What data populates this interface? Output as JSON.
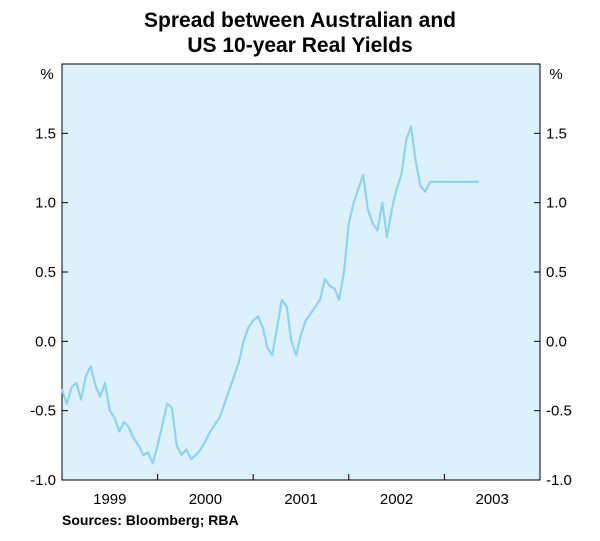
{
  "title_lines": [
    "Spread between Australian and",
    "US 10-year Real Yields"
  ],
  "source": "Sources: Bloomberg; RBA",
  "colors": {
    "line": "#8ed3ef",
    "plot_bg": "#dcf1fb",
    "axis": "#000000"
  },
  "chart_data": {
    "type": "line",
    "title": "Spread between Australian and US 10-year Real Yields",
    "y_unit_label": "%",
    "ylim": [
      -1.0,
      2.0
    ],
    "y_ticks": [
      -1.0,
      -0.5,
      0.0,
      0.5,
      1.0,
      1.5
    ],
    "y_tick_labels": [
      "-1.0",
      "-0.5",
      "0.0",
      "0.5",
      "1.0",
      "1.5"
    ],
    "xlim": [
      1998.5,
      2003.5
    ],
    "x_tick_labels": [
      "1999",
      "2000",
      "2001",
      "2002",
      "2003"
    ],
    "x_tick_label_pos": [
      1999.0,
      2000.0,
      2001.0,
      2002.0,
      2003.0
    ],
    "x_year_boundaries": [
      1999.5,
      2000.5,
      2001.5,
      2002.5
    ],
    "grid": false,
    "series": [
      {
        "x": [
          1998.5,
          1998.55,
          1998.6,
          1998.65,
          1998.7,
          1998.75,
          1998.8,
          1998.85,
          1998.9,
          1998.95,
          1999.0,
          1999.05,
          1999.1,
          1999.15,
          1999.2,
          1999.25,
          1999.3,
          1999.35,
          1999.4,
          1999.45,
          1999.5,
          1999.55,
          1999.6,
          1999.65,
          1999.7,
          1999.75,
          1999.8,
          1999.85,
          1999.9,
          1999.95,
          2000.0,
          2000.05,
          2000.1,
          2000.15,
          2000.2,
          2000.25,
          2000.3,
          2000.35,
          2000.4,
          2000.45,
          2000.5,
          2000.55,
          2000.6,
          2000.65,
          2000.7,
          2000.75,
          2000.8,
          2000.85,
          2000.9,
          2000.95,
          2001.0,
          2001.05,
          2001.1,
          2001.15,
          2001.2,
          2001.25,
          2001.3,
          2001.35,
          2001.4,
          2001.45,
          2001.5,
          2001.55,
          2001.6,
          2001.65,
          2001.7,
          2001.75,
          2001.8,
          2001.85,
          2001.9,
          2001.95,
          2002.0,
          2002.05,
          2002.1,
          2002.15,
          2002.2,
          2002.25,
          2002.3,
          2002.35,
          2002.4,
          2002.45,
          2002.5,
          2002.55,
          2002.6,
          2002.65,
          2002.7,
          2002.75,
          2002.8,
          2002.85
        ],
        "values": [
          -0.35,
          -0.45,
          -0.33,
          -0.3,
          -0.42,
          -0.25,
          -0.18,
          -0.32,
          -0.4,
          -0.3,
          -0.5,
          -0.55,
          -0.65,
          -0.58,
          -0.62,
          -0.7,
          -0.75,
          -0.82,
          -0.8,
          -0.88,
          -0.75,
          -0.6,
          -0.45,
          -0.48,
          -0.75,
          -0.82,
          -0.78,
          -0.85,
          -0.82,
          -0.78,
          -0.72,
          -0.65,
          -0.6,
          -0.55,
          -0.45,
          -0.35,
          -0.25,
          -0.15,
          0.0,
          0.1,
          0.15,
          0.18,
          0.1,
          -0.05,
          -0.1,
          0.1,
          0.3,
          0.25,
          0.0,
          -0.1,
          0.05,
          0.15,
          0.2,
          0.25,
          0.3,
          0.45,
          0.4,
          0.38,
          0.3,
          0.5,
          0.85,
          1.0,
          1.1,
          1.2,
          0.95,
          0.85,
          0.8,
          1.0,
          0.75,
          0.95,
          1.1,
          1.2,
          1.45,
          1.55,
          1.3,
          1.12,
          1.08,
          1.15,
          1.15,
          1.15,
          1.15,
          1.15,
          1.15,
          1.15,
          1.15,
          1.15,
          1.15,
          1.15
        ]
      }
    ]
  }
}
